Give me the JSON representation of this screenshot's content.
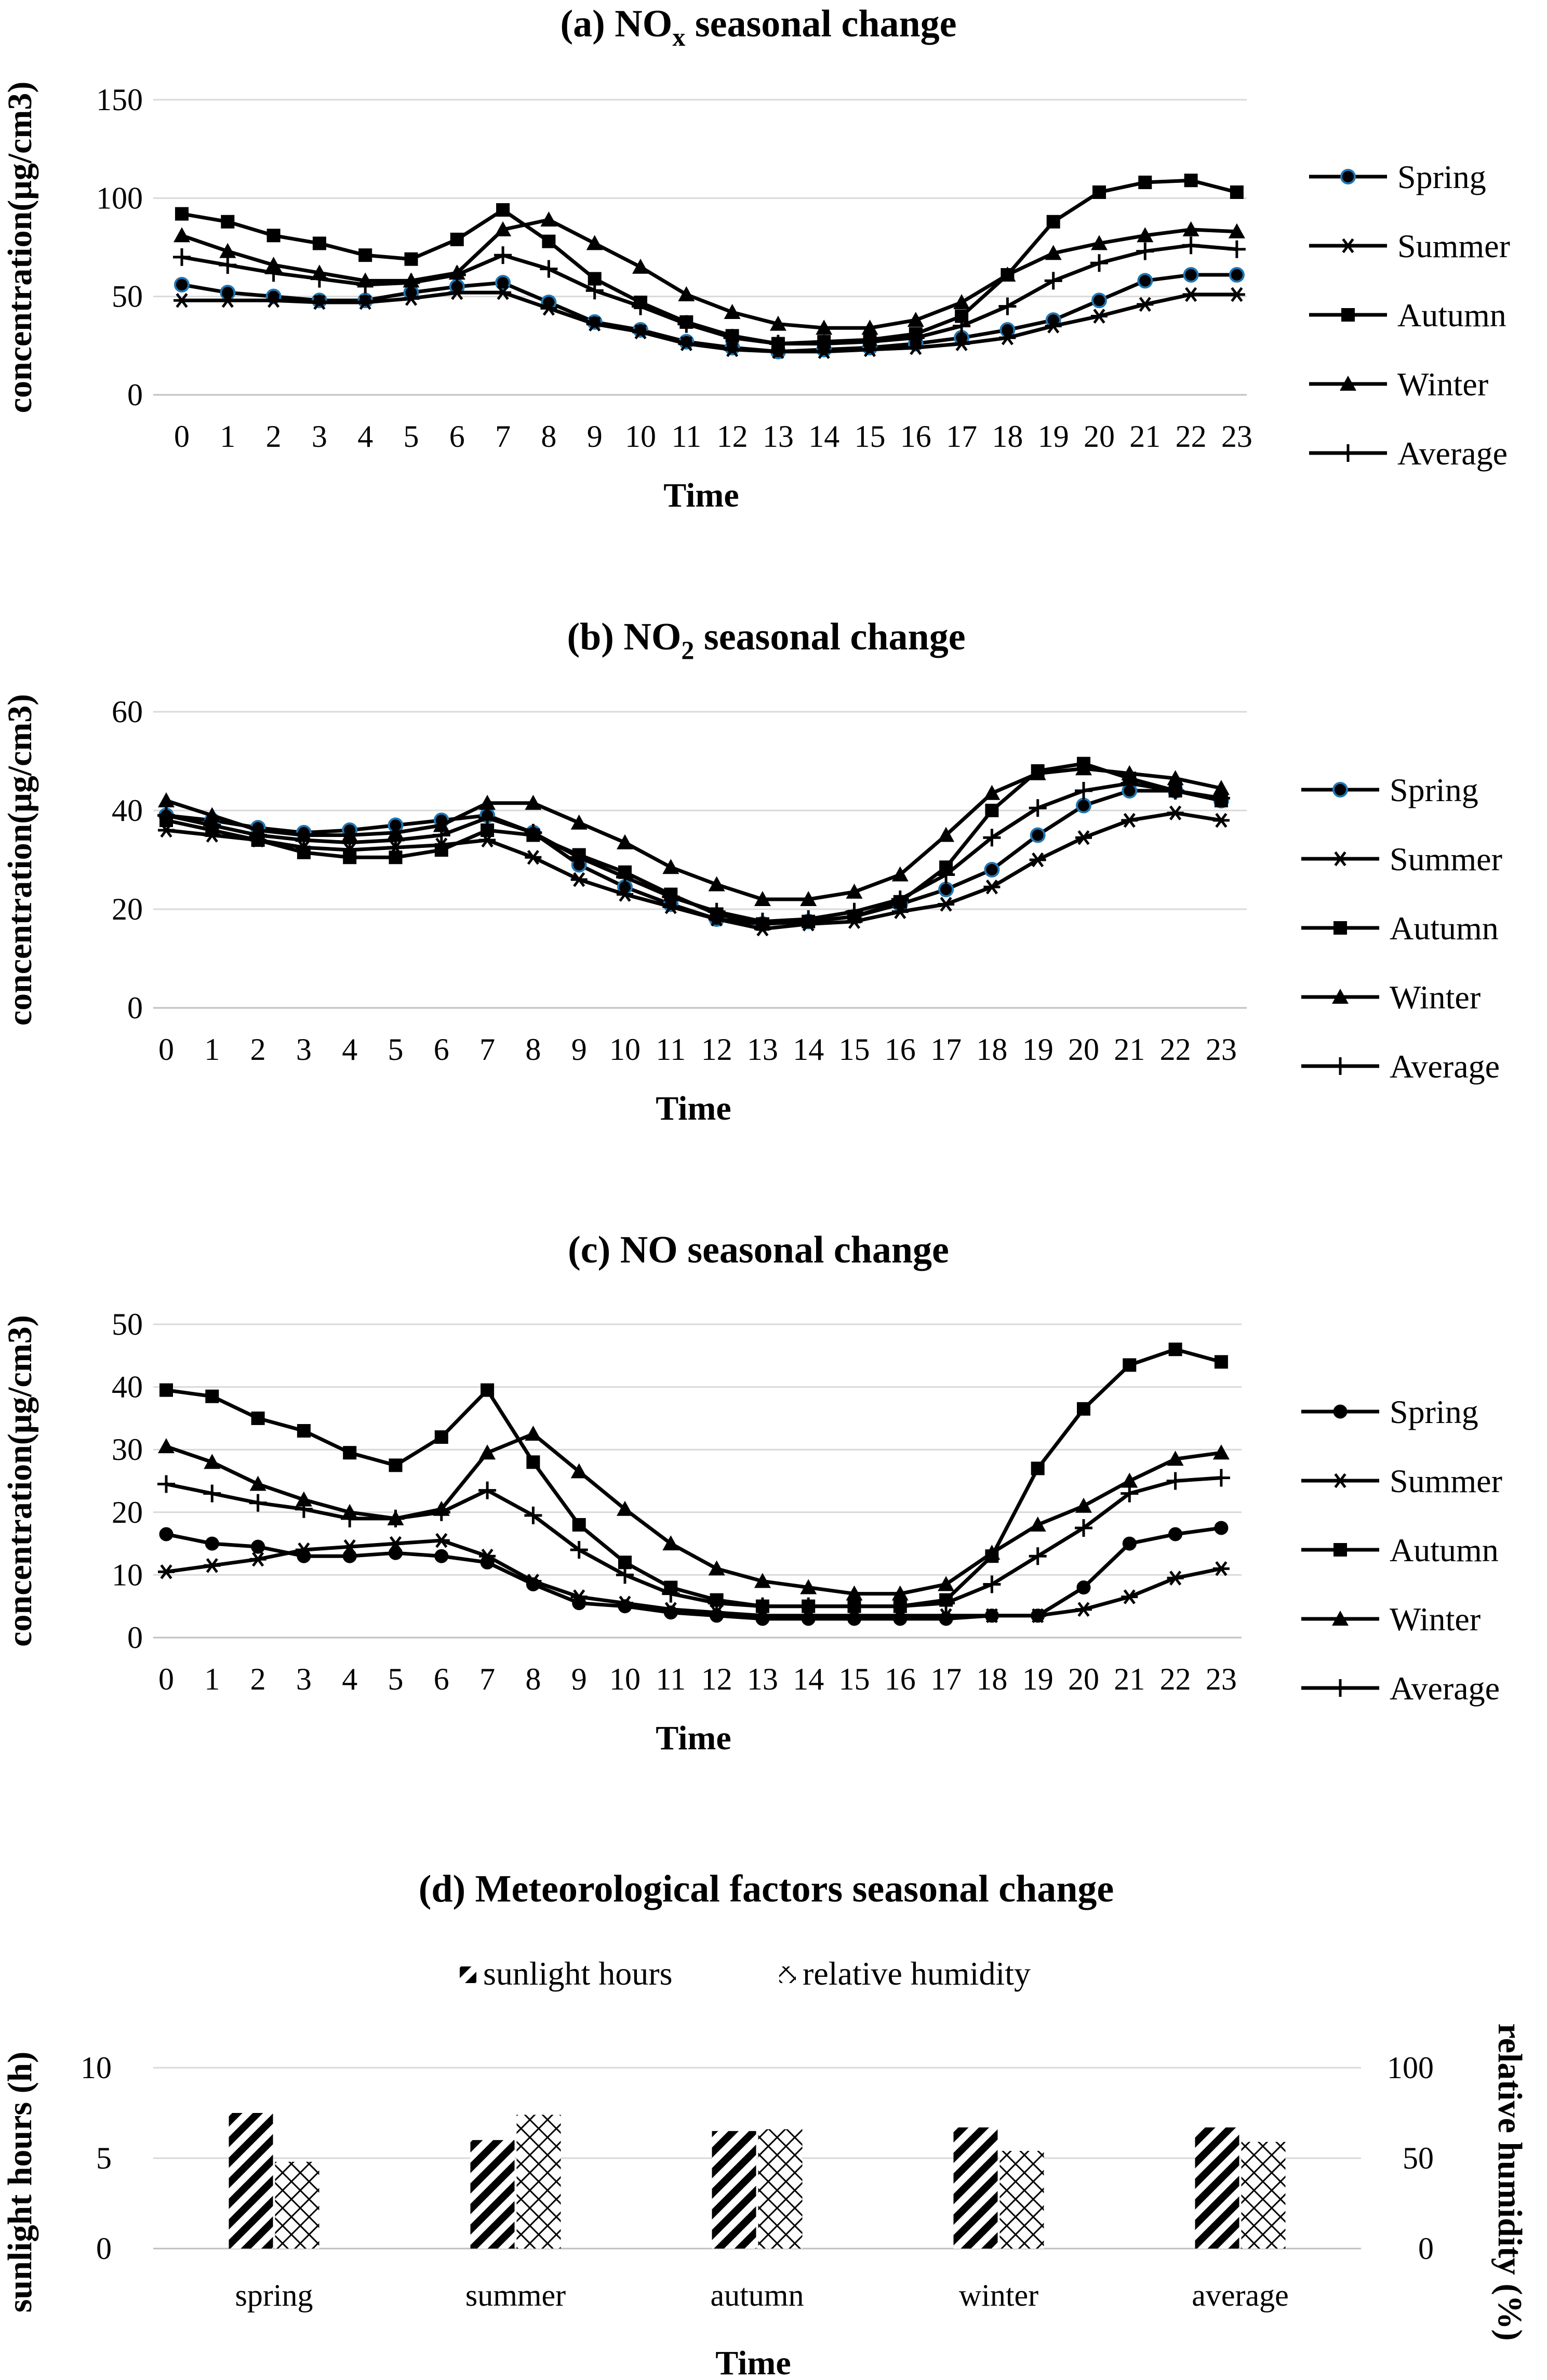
{
  "chart_data": [
    {
      "type": "line",
      "title_main": "(a) NO",
      "title_sub": "x",
      "title_rest": " seasonal change",
      "xlabel": "Time",
      "ylabel": "concentration(μg/cm3)",
      "ylim": [
        0,
        150
      ],
      "yticks": [
        0,
        50,
        100,
        150
      ],
      "categories": [
        "0",
        "1",
        "2",
        "3",
        "4",
        "5",
        "6",
        "7",
        "8",
        "9",
        "10",
        "11",
        "12",
        "13",
        "14",
        "15",
        "16",
        "17",
        "18",
        "19",
        "20",
        "21",
        "22",
        "23"
      ],
      "series": [
        {
          "name": "Spring",
          "marker": "circle-blue",
          "values": [
            56,
            52,
            50,
            48,
            48,
            52,
            55,
            57,
            47,
            37,
            33,
            27,
            24,
            22,
            23,
            24,
            26,
            29,
            33,
            38,
            48,
            58,
            61,
            61
          ]
        },
        {
          "name": "Summer",
          "marker": "asterisk",
          "values": [
            48,
            48,
            48,
            47,
            47,
            49,
            52,
            52,
            44,
            36,
            32,
            26,
            23,
            22,
            22,
            23,
            24,
            26,
            29,
            35,
            40,
            46,
            51,
            51
          ]
        },
        {
          "name": "Autumn",
          "marker": "square",
          "values": [
            92,
            88,
            81,
            77,
            71,
            69,
            79,
            94,
            78,
            59,
            47,
            37,
            30,
            26,
            27,
            28,
            31,
            40,
            61,
            88,
            103,
            108,
            109,
            103
          ]
        },
        {
          "name": "Winter",
          "marker": "triangle",
          "values": [
            81,
            73,
            66,
            62,
            58,
            58,
            62,
            84,
            89,
            77,
            65,
            51,
            42,
            36,
            34,
            34,
            38,
            47,
            61,
            72,
            77,
            81,
            84,
            83
          ]
        },
        {
          "name": "Average",
          "marker": "plus",
          "values": [
            70,
            66,
            62,
            59,
            56,
            57,
            61,
            71,
            64,
            53,
            45,
            36,
            29,
            26,
            26,
            27,
            29,
            35,
            45,
            58,
            67,
            73,
            76,
            74
          ]
        }
      ]
    },
    {
      "type": "line",
      "title_main": "(b) NO",
      "title_sub": "2",
      "title_rest": " seasonal change",
      "xlabel": "Time",
      "ylabel": "concentration(μg/cm3)",
      "ylim": [
        0,
        60
      ],
      "yticks": [
        0,
        20,
        40,
        60
      ],
      "categories": [
        "0",
        "1",
        "2",
        "3",
        "4",
        "5",
        "6",
        "7",
        "8",
        "9",
        "10",
        "11",
        "12",
        "13",
        "14",
        "15",
        "16",
        "17",
        "18",
        "19",
        "20",
        "21",
        "22",
        "23"
      ],
      "series": [
        {
          "name": "Spring",
          "marker": "circle-blue",
          "values": [
            39,
            38,
            36.5,
            35.5,
            36,
            37,
            38,
            39,
            35.5,
            29,
            24.5,
            21,
            18,
            17,
            17.5,
            18.5,
            21,
            24,
            28,
            35,
            41,
            44,
            44,
            42
          ]
        },
        {
          "name": "Summer",
          "marker": "asterisk",
          "values": [
            36,
            35,
            34,
            32.5,
            32,
            32.5,
            33,
            34,
            30.5,
            26,
            23,
            20.5,
            18,
            16,
            17,
            17.5,
            19.5,
            21,
            24.5,
            30,
            34.5,
            38,
            39.5,
            38
          ]
        },
        {
          "name": "Autumn",
          "marker": "square",
          "values": [
            38,
            36,
            34,
            31.5,
            30.5,
            30.5,
            32,
            36,
            35,
            31,
            27.5,
            23,
            19,
            17,
            17.5,
            18.5,
            21.5,
            28.5,
            40,
            48,
            49.5,
            46.5,
            44,
            42
          ]
        },
        {
          "name": "Winter",
          "marker": "triangle",
          "values": [
            42,
            39,
            36,
            35,
            35,
            35.5,
            37,
            41.5,
            41.5,
            37.5,
            33.5,
            28.5,
            25,
            22,
            22,
            23.5,
            27,
            35,
            43.5,
            47.5,
            48.5,
            47.5,
            46.5,
            44.5
          ]
        },
        {
          "name": "Average",
          "marker": "plus",
          "values": [
            39,
            37,
            35,
            34,
            33.5,
            34,
            35,
            38.5,
            35.5,
            30.5,
            26.5,
            22.5,
            19.5,
            17.5,
            18,
            19.5,
            22,
            27,
            34.5,
            40.5,
            44,
            45.5,
            44,
            42.5
          ]
        }
      ]
    },
    {
      "type": "line",
      "title_main": "(c) NO seasonal change",
      "title_sub": "",
      "title_rest": "",
      "xlabel": "Time",
      "ylabel": "concentration(μg/cm3)",
      "ylim": [
        0,
        50
      ],
      "yticks": [
        0,
        10,
        20,
        30,
        40,
        50
      ],
      "categories": [
        "0",
        "1",
        "2",
        "3",
        "4",
        "5",
        "6",
        "7",
        "8",
        "9",
        "10",
        "11",
        "12",
        "13",
        "14",
        "15",
        "16",
        "17",
        "18",
        "19",
        "20",
        "21",
        "22",
        "23"
      ],
      "series": [
        {
          "name": "Spring",
          "marker": "circle",
          "values": [
            16.5,
            15,
            14.5,
            13,
            13,
            13.5,
            13,
            12,
            8.5,
            5.5,
            5,
            4,
            3.5,
            3,
            3,
            3,
            3,
            3,
            3.5,
            3.5,
            8,
            15,
            16.5,
            17.5
          ]
        },
        {
          "name": "Summer",
          "marker": "asterisk",
          "values": [
            10.5,
            11.5,
            12.5,
            14,
            14.5,
            15,
            15.5,
            13,
            9,
            6.5,
            5.5,
            4.5,
            4,
            3.5,
            3.5,
            3.5,
            3.5,
            3.5,
            3.5,
            3.5,
            4.5,
            6.5,
            9.5,
            11
          ]
        },
        {
          "name": "Autumn",
          "marker": "square",
          "values": [
            39.5,
            38.5,
            35,
            33,
            29.5,
            27.5,
            32,
            39.5,
            28,
            18,
            12,
            8,
            6,
            5,
            5,
            5,
            5,
            6,
            13,
            27,
            36.5,
            43.5,
            46,
            44
          ]
        },
        {
          "name": "Winter",
          "marker": "triangle",
          "values": [
            30.5,
            28,
            24.5,
            22,
            20,
            19,
            20.5,
            29.5,
            32.5,
            26.5,
            20.5,
            15,
            11,
            9,
            8,
            7,
            7,
            8.5,
            13.5,
            18,
            21,
            25,
            28.5,
            29.5
          ]
        },
        {
          "name": "Average",
          "marker": "plus",
          "values": [
            24.5,
            23,
            21.5,
            20.5,
            19,
            19,
            20,
            23.5,
            19.5,
            14,
            10,
            7,
            5.5,
            5,
            5,
            5,
            5,
            5.5,
            8.5,
            13,
            17.5,
            23,
            25,
            25.5
          ]
        }
      ]
    },
    {
      "type": "bar",
      "title": "(d) Meteorological factors seasonal change",
      "xlabel": "Time",
      "ylabel_left": "sunlight hours (h)",
      "ylabel_right": "relative humidity (%)",
      "ylim_left": [
        0,
        10
      ],
      "yticks_left": [
        0,
        5,
        10
      ],
      "ylim_right": [
        0,
        100
      ],
      "yticks_right": [
        0,
        50,
        100
      ],
      "categories": [
        "spring",
        "summer",
        "autumn",
        "winter",
        "average"
      ],
      "series": [
        {
          "name": "sunlight hours",
          "axis": "left",
          "pattern": "diagonal",
          "values": [
            7.5,
            6.0,
            6.5,
            6.7,
            6.7
          ]
        },
        {
          "name": "relative humidity",
          "axis": "right",
          "pattern": "crosshatch",
          "values": [
            48,
            74,
            66,
            54,
            59
          ]
        }
      ]
    }
  ]
}
